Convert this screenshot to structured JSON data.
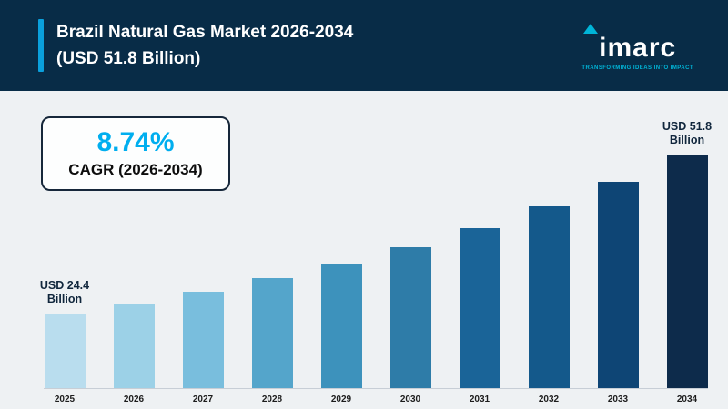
{
  "header": {
    "title_line1": "Brazil Natural Gas Market 2026-2034",
    "title_line2": "(USD 51.8 Billion)",
    "accent_color": "#0aa0dc",
    "logo_text": "imarc",
    "logo_tagline": "TRANSFORMING IDEAS INTO IMPACT"
  },
  "cagr_box": {
    "value": "8.74%",
    "label": "CAGR (2026-2034)",
    "value_color": "#00aeef"
  },
  "chart_data": {
    "type": "bar",
    "title": "Brazil Natural Gas Market 2026-2034 (USD 51.8 Billion)",
    "categories": [
      "2025",
      "2026",
      "2027",
      "2028",
      "2029",
      "2030",
      "2031",
      "2032",
      "2033",
      "2034"
    ],
    "values": [
      24.4,
      26.5,
      28.8,
      31.4,
      34.1,
      37.1,
      40.3,
      43.8,
      47.7,
      51.8
    ],
    "unit": "USD Billion",
    "start_value_label": "USD 24.4 Billion",
    "end_value_label": "USD 51.8 Billion",
    "cagr": "8.74% (2026-2034)",
    "xlabel": "",
    "ylabel": "",
    "ylim": [
      0,
      51.8
    ],
    "grid": false,
    "legend": "none",
    "colors": [
      "#b9ddee",
      "#9cd1e7",
      "#79bedd",
      "#54a5cb",
      "#3d92bc",
      "#2e7ca8",
      "#1a6498",
      "#14598b",
      "#0e4575",
      "#0d2b4b"
    ],
    "annotations": [
      {
        "index": 0,
        "line1": "USD 24.4",
        "line2": "Billion"
      },
      {
        "index": 9,
        "line1": "USD 51.8",
        "line2": "Billion"
      }
    ]
  }
}
